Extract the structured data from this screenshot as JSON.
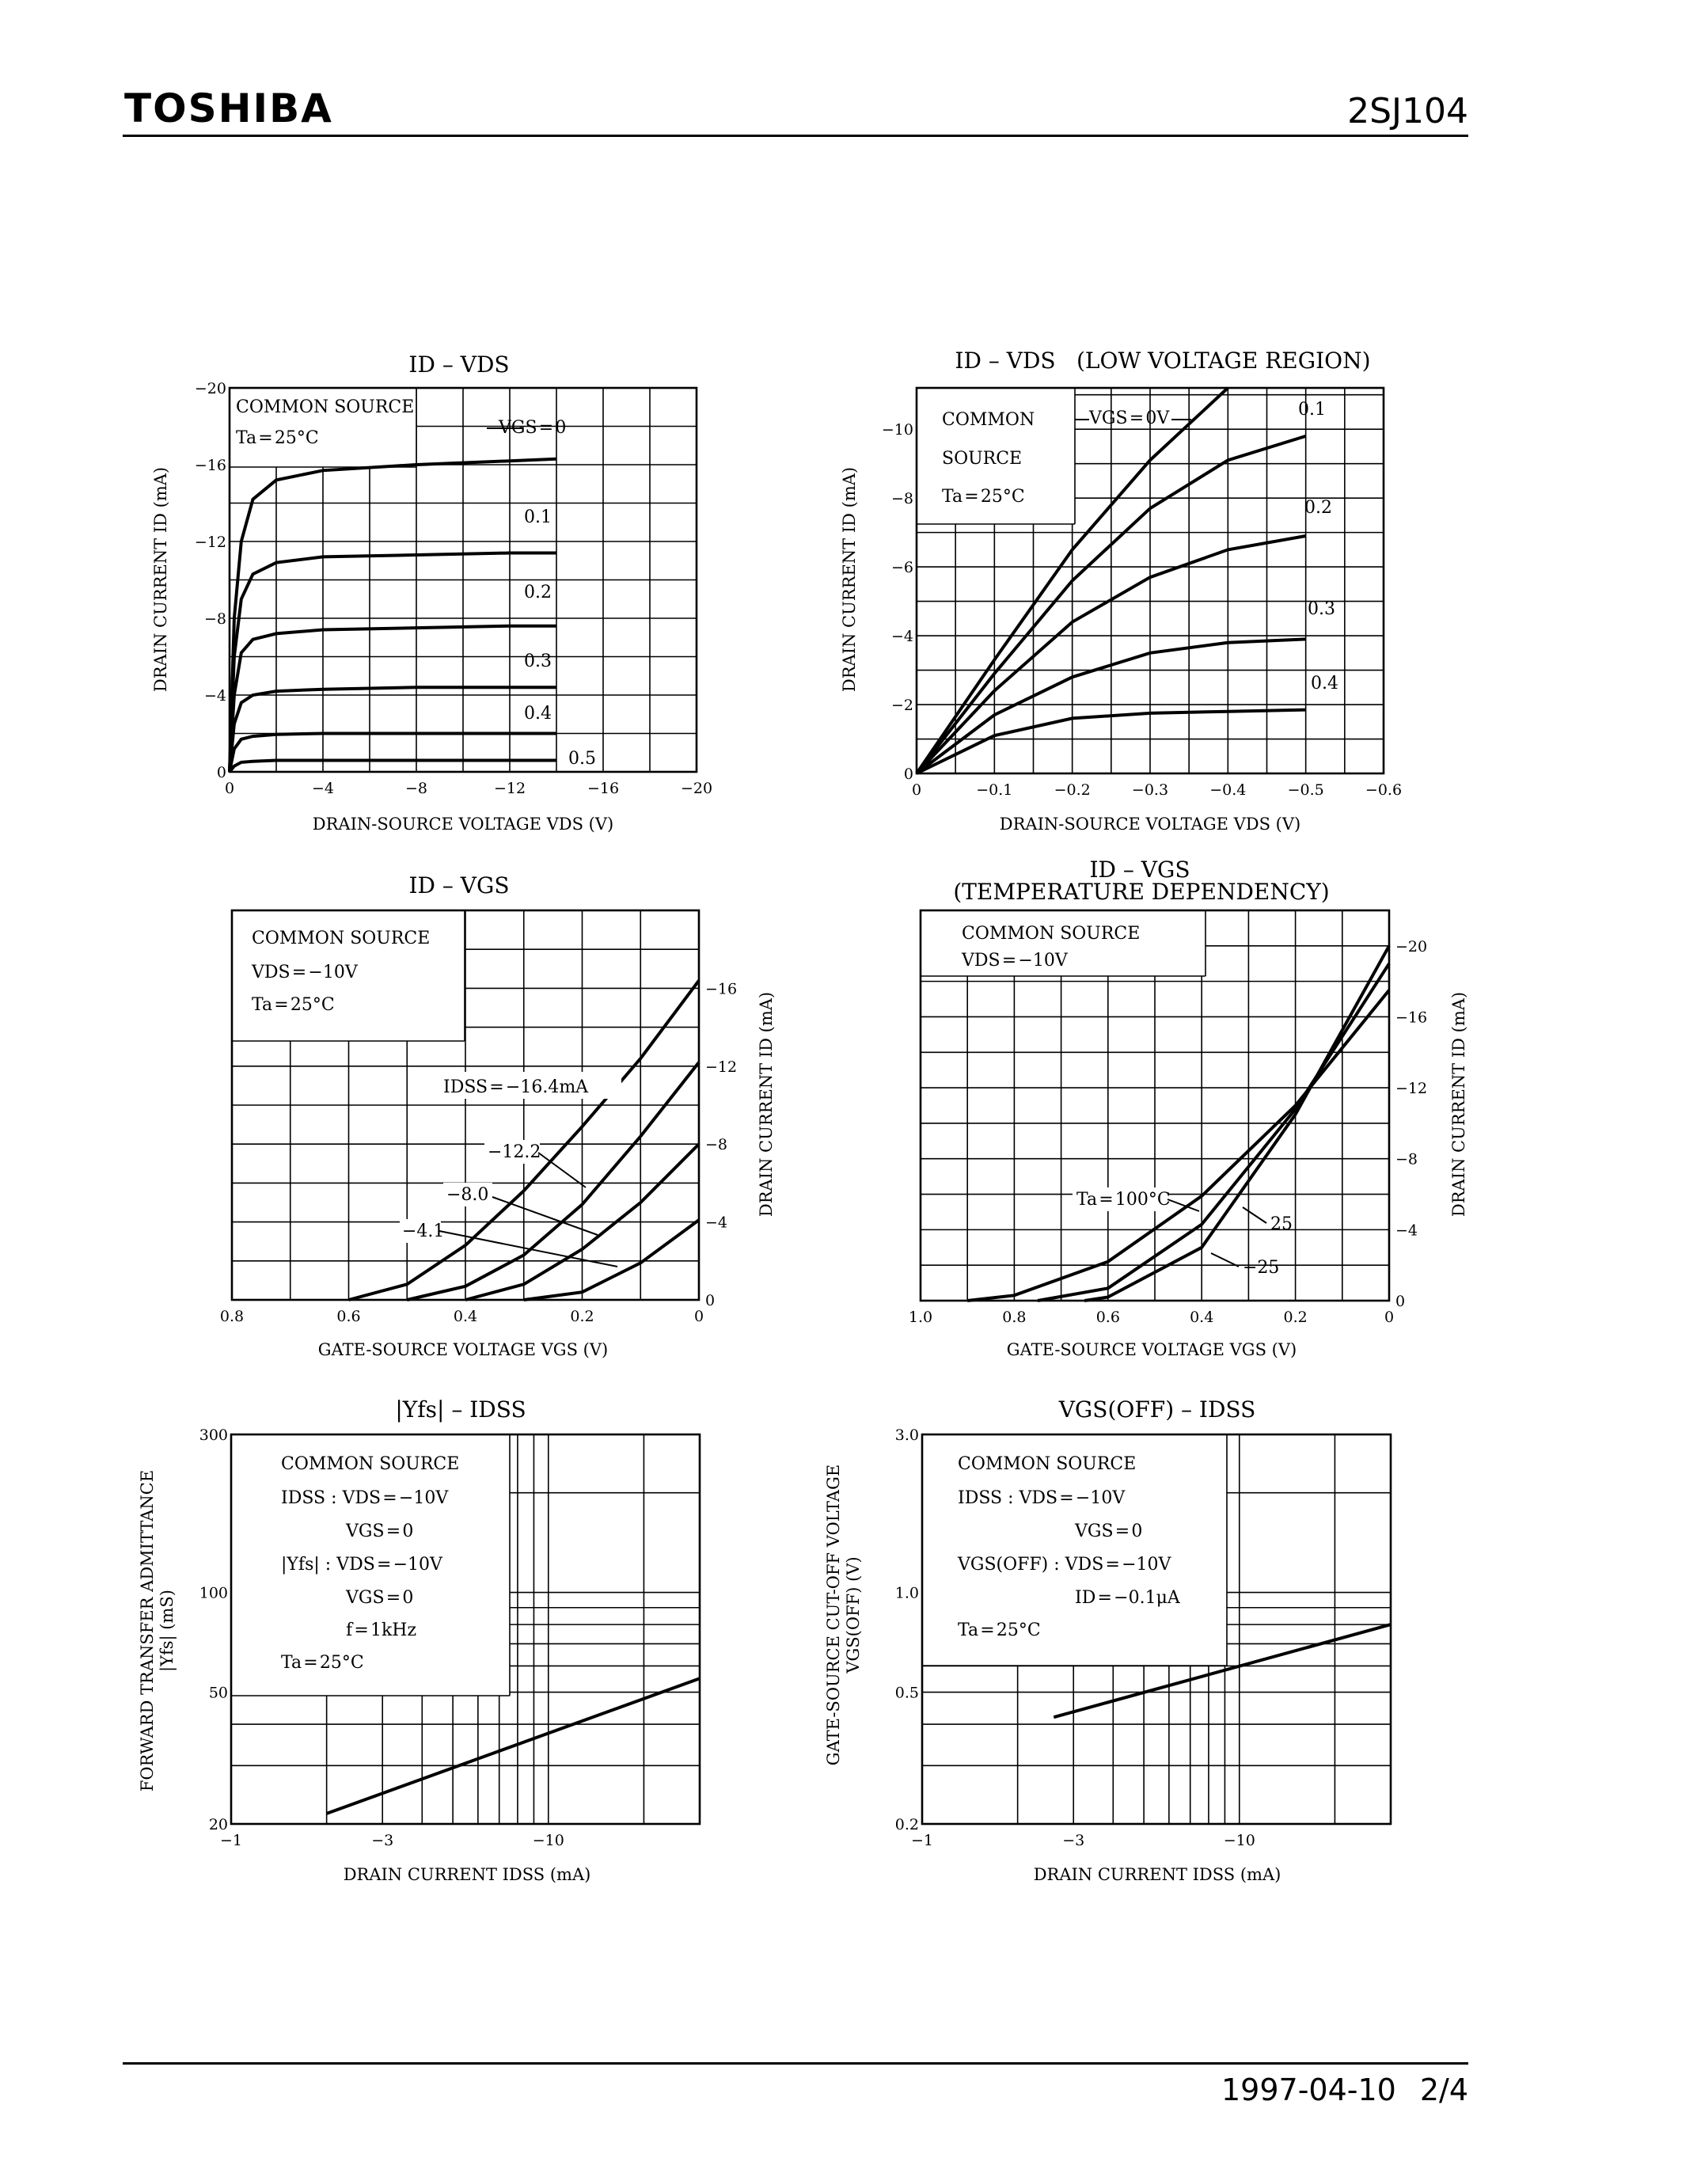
{
  "header": {
    "brand": "TOSHIBA",
    "part_number": "2SJ104"
  },
  "footer": {
    "date": "1997-04-10",
    "page": "2/4"
  },
  "chart_data": [
    {
      "id": "c1",
      "type": "line",
      "title": "ID – VDS",
      "xlabel": "DRAIN-SOURCE VOLTAGE  VDS  (V)",
      "ylabel": "DRAIN CURRENT  ID  (mA)",
      "xlim": [
        0,
        -20
      ],
      "ylim": [
        0,
        -20
      ],
      "x_ticks": [
        "0",
        "−4",
        "−8",
        "−12",
        "−16",
        "−20"
      ],
      "y_ticks": [
        "0",
        "−4",
        "−8",
        "−12",
        "−16",
        "−20"
      ],
      "legend": [
        "COMMON SOURCE",
        "Ta = 25°C"
      ],
      "series_param": "VGS",
      "series": [
        {
          "name": "VGS = 0",
          "x": [
            0,
            -0.2,
            -0.5,
            -1,
            -2,
            -4,
            -8,
            -12,
            -14
          ],
          "y": [
            0,
            -8,
            -12,
            -14.2,
            -15.2,
            -15.7,
            -16,
            -16.2,
            -16.3
          ]
        },
        {
          "name": "0.1",
          "x": [
            0,
            -0.2,
            -0.5,
            -1,
            -2,
            -4,
            -8,
            -12,
            -14
          ],
          "y": [
            0,
            -6,
            -9,
            -10.3,
            -10.9,
            -11.2,
            -11.3,
            -11.4,
            -11.4
          ]
        },
        {
          "name": "0.2",
          "x": [
            0,
            -0.2,
            -0.5,
            -1,
            -2,
            -4,
            -8,
            -12,
            -14
          ],
          "y": [
            0,
            -4,
            -6.2,
            -6.9,
            -7.2,
            -7.4,
            -7.5,
            -7.6,
            -7.6
          ]
        },
        {
          "name": "0.3",
          "x": [
            0,
            -0.2,
            -0.5,
            -1,
            -2,
            -4,
            -8,
            -12,
            -14
          ],
          "y": [
            0,
            -2.5,
            -3.6,
            -4.0,
            -4.2,
            -4.3,
            -4.4,
            -4.4,
            -4.4
          ]
        },
        {
          "name": "0.4",
          "x": [
            0,
            -0.2,
            -0.5,
            -1,
            -2,
            -4,
            -8,
            -12,
            -14
          ],
          "y": [
            0,
            -1.2,
            -1.7,
            -1.85,
            -1.95,
            -2.0,
            -2.0,
            -2.0,
            -2.0
          ]
        },
        {
          "name": "0.5",
          "x": [
            0,
            -0.2,
            -0.5,
            -1,
            -2,
            -4,
            -8,
            -12,
            -14
          ],
          "y": [
            0,
            -0.3,
            -0.5,
            -0.55,
            -0.6,
            -0.6,
            -0.6,
            -0.6,
            -0.6
          ]
        }
      ]
    },
    {
      "id": "c2",
      "type": "line",
      "title": "ID – VDS",
      "title_note": "(LOW VOLTAGE REGION)",
      "xlabel": "DRAIN-SOURCE VOLTAGE  VDS  (V)",
      "ylabel": "DRAIN CURRENT  ID  (mA)",
      "xlim": [
        0,
        -0.6
      ],
      "ylim": [
        0,
        -11.2
      ],
      "x_ticks": [
        "0",
        "−0.1",
        "−0.2",
        "−0.3",
        "−0.4",
        "−0.5",
        "−0.6"
      ],
      "y_ticks": [
        "0",
        "−2",
        "−4",
        "−6",
        "−8",
        "−10"
      ],
      "legend": [
        "COMMON",
        "SOURCE",
        "Ta = 25°C"
      ],
      "series_param": "VGS",
      "series": [
        {
          "name": "VGS = 0V",
          "x": [
            0,
            -0.1,
            -0.2,
            -0.3,
            -0.4
          ],
          "y": [
            0,
            -3.3,
            -6.5,
            -9.1,
            -11.2
          ]
        },
        {
          "name": "0.1",
          "x": [
            0,
            -0.1,
            -0.2,
            -0.3,
            -0.4,
            -0.5
          ],
          "y": [
            0,
            -2.9,
            -5.6,
            -7.7,
            -9.1,
            -9.8
          ]
        },
        {
          "name": "0.2",
          "x": [
            0,
            -0.1,
            -0.2,
            -0.3,
            -0.4,
            -0.5
          ],
          "y": [
            0,
            -2.4,
            -4.4,
            -5.7,
            -6.5,
            -6.9
          ]
        },
        {
          "name": "0.3",
          "x": [
            0,
            -0.1,
            -0.2,
            -0.3,
            -0.4,
            -0.5
          ],
          "y": [
            0,
            -1.7,
            -2.8,
            -3.5,
            -3.8,
            -3.9
          ]
        },
        {
          "name": "0.4",
          "x": [
            0,
            -0.1,
            -0.2,
            -0.3,
            -0.4,
            -0.5
          ],
          "y": [
            0,
            -1.1,
            -1.6,
            -1.75,
            -1.8,
            -1.85
          ]
        }
      ]
    },
    {
      "id": "c3",
      "type": "line",
      "title": "ID – VGS",
      "xlabel": "GATE-SOURCE VOLTAGE  VGS  (V)",
      "ylabel": "DRAIN CURRENT  ID  (mA)",
      "xlim": [
        0.8,
        0
      ],
      "ylim": [
        0,
        -20
      ],
      "x_ticks": [
        "0.8",
        "0.6",
        "0.4",
        "0.2",
        "0"
      ],
      "y_ticks": [
        "0",
        "−4",
        "−8",
        "−12",
        "−16"
      ],
      "legend": [
        "COMMON SOURCE",
        "VDS = −10V",
        "Ta = 25°C"
      ],
      "series_param": "IDSS",
      "series": [
        {
          "name": "IDSS = −16.4mA",
          "x": [
            0.6,
            0.5,
            0.4,
            0.3,
            0.2,
            0.1,
            0
          ],
          "y": [
            0,
            -0.8,
            -2.8,
            -5.6,
            -8.9,
            -12.4,
            -16.4
          ]
        },
        {
          "name": "−12.2",
          "x": [
            0.5,
            0.4,
            0.3,
            0.2,
            0.1,
            0
          ],
          "y": [
            0,
            -0.7,
            -2.3,
            -4.9,
            -8.4,
            -12.2
          ]
        },
        {
          "name": "−8.0",
          "x": [
            0.4,
            0.3,
            0.2,
            0.1,
            0
          ],
          "y": [
            0,
            -0.8,
            -2.6,
            -5.0,
            -8.0
          ]
        },
        {
          "name": "−4.1",
          "x": [
            0.3,
            0.2,
            0.1,
            0
          ],
          "y": [
            0,
            -0.4,
            -1.9,
            -4.1
          ]
        }
      ]
    },
    {
      "id": "c4",
      "type": "line",
      "title": "ID – VGS",
      "title_note": "(TEMPERATURE DEPENDENCY)",
      "xlabel": "GATE-SOURCE VOLTAGE  VGS  (V)",
      "ylabel": "DRAIN CURRENT  ID  (mA)",
      "xlim": [
        1.0,
        0
      ],
      "ylim": [
        0,
        -22
      ],
      "x_ticks": [
        "1.0",
        "0.8",
        "0.6",
        "0.4",
        "0.2",
        "0"
      ],
      "y_ticks": [
        "0",
        "−4",
        "−8",
        "−12",
        "−16",
        "−20"
      ],
      "legend": [
        "COMMON SOURCE",
        "VDS = −10V"
      ],
      "series_param": "Ta",
      "series": [
        {
          "name": "Ta = 100°C",
          "x": [
            0.9,
            0.8,
            0.6,
            0.4,
            0.2,
            0
          ],
          "y": [
            0,
            -0.3,
            -2.2,
            -5.9,
            -11.0,
            -17.5
          ]
        },
        {
          "name": "25",
          "x": [
            0.75,
            0.6,
            0.4,
            0.2,
            0
          ],
          "y": [
            0,
            -0.7,
            -4.3,
            -10.8,
            -19.0
          ]
        },
        {
          "name": "−25",
          "x": [
            0.65,
            0.6,
            0.4,
            0.2,
            0
          ],
          "y": [
            0,
            -0.2,
            -3.0,
            -10.5,
            -20.0
          ]
        }
      ]
    },
    {
      "id": "c5",
      "type": "line",
      "title": "|Yfs| – IDSS",
      "xlabel": "DRAIN CURRENT  IDSS  (mA)",
      "ylabel_1": "FORWARD TRANSFER ADMITTANCE",
      "ylabel_2": "|Yfs|  (mS)",
      "x_scale": "log",
      "y_scale": "log",
      "xlim": [
        -1,
        -30
      ],
      "ylim": [
        20,
        300
      ],
      "x_ticks": [
        "−1",
        "−3",
        "−10"
      ],
      "y_ticks": [
        "20",
        "50",
        "100",
        "300"
      ],
      "legend": [
        "COMMON SOURCE",
        "IDSS  :  VDS = −10V",
        "VGS = 0",
        "|Yfs|  :  VDS = −10V",
        "VGS = 0",
        "f = 1kHz",
        "Ta = 25°C"
      ],
      "series": [
        {
          "name": "|Yfs|",
          "x": [
            -2,
            -30
          ],
          "y": [
            21.5,
            55
          ]
        }
      ]
    },
    {
      "id": "c6",
      "type": "line",
      "title": "VGS(OFF) – IDSS",
      "xlabel": "DRAIN CURRENT  IDSS  (mA)",
      "ylabel_1": "GATE-SOURCE CUT-OFF VOLTAGE",
      "ylabel_2": "VGS(OFF)  (V)",
      "x_scale": "log",
      "y_scale": "log",
      "xlim": [
        -1,
        -30
      ],
      "ylim": [
        0.2,
        3.0
      ],
      "x_ticks": [
        "−1",
        "−3",
        "−10"
      ],
      "y_ticks": [
        "0.2",
        "0.5",
        "1.0",
        "3.0"
      ],
      "legend": [
        "COMMON SOURCE",
        "IDSS            :  VDS = −10V",
        "VGS = 0",
        "VGS(OFF)  :  VDS = −10V",
        "ID = −0.1μA",
        "Ta = 25°C"
      ],
      "series": [
        {
          "name": "VGS(OFF)",
          "x": [
            -2.6,
            -30
          ],
          "y": [
            0.42,
            0.8
          ]
        }
      ]
    }
  ]
}
